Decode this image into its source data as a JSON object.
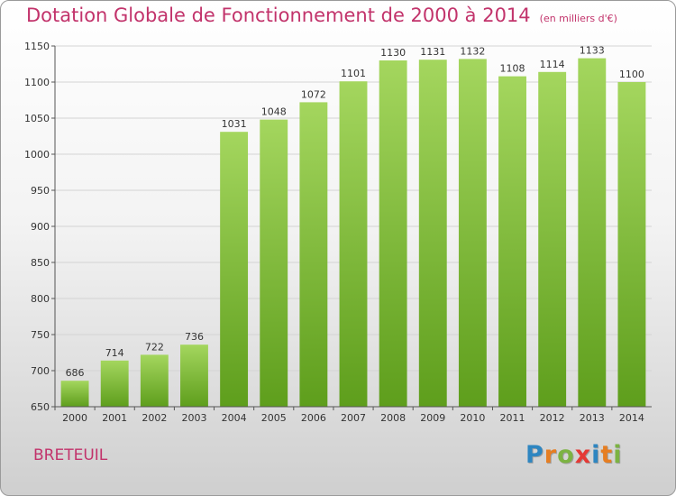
{
  "header": {
    "title": "Dotation Globale de Fonctionnement de 2000 à 2014",
    "subtitle": "(en milliers d'€)"
  },
  "footer": {
    "place": "BRETEUIL",
    "brand_letters": [
      "P",
      "r",
      "o",
      "x",
      "i",
      "t",
      "i"
    ],
    "brand_colors": [
      "#2e86c1",
      "#e67e22",
      "#7cb342",
      "#e53935",
      "#2e86c1",
      "#e67e22",
      "#7cb342"
    ]
  },
  "colors": {
    "bar_top": "#a4d65e",
    "bar_bottom": "#5e9e1c",
    "grid": "#d4d4d4",
    "axis": "#555555",
    "accent": "#c2336b"
  },
  "chart_data": {
    "type": "bar",
    "title": "Dotation Globale de Fonctionnement de 2000 à 2014",
    "subtitle": "(en milliers d'€)",
    "xlabel": "",
    "ylabel": "",
    "categories": [
      "2000",
      "2001",
      "2002",
      "2003",
      "2004",
      "2005",
      "2006",
      "2007",
      "2008",
      "2009",
      "2010",
      "2011",
      "2012",
      "2013",
      "2014"
    ],
    "values": [
      686,
      714,
      722,
      736,
      1031,
      1048,
      1072,
      1101,
      1130,
      1131,
      1132,
      1108,
      1114,
      1133,
      1100
    ],
    "ylim": [
      650,
      1150
    ],
    "yticks": [
      650,
      700,
      750,
      800,
      850,
      900,
      950,
      1000,
      1050,
      1100,
      1150
    ],
    "grid": true,
    "legend": "none"
  }
}
